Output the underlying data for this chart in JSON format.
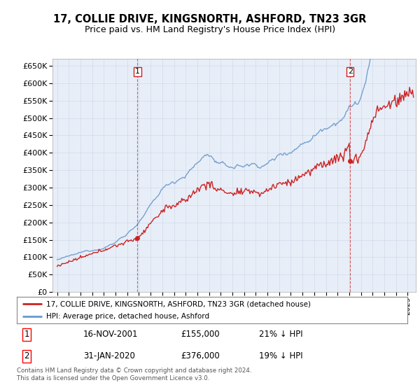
{
  "title": "17, COLLIE DRIVE, KINGSNORTH, ASHFORD, TN23 3GR",
  "subtitle": "Price paid vs. HM Land Registry's House Price Index (HPI)",
  "ylim": [
    0,
    670000
  ],
  "yticks": [
    0,
    50000,
    100000,
    150000,
    200000,
    250000,
    300000,
    350000,
    400000,
    450000,
    500000,
    550000,
    600000,
    650000
  ],
  "sale1_date_num": 2001.88,
  "sale1_price": 155000,
  "sale2_date_num": 2020.08,
  "sale2_price": 376000,
  "hpi_color": "#6699cc",
  "price_color": "#cc2222",
  "grid_color": "#bbccdd",
  "bg_color": "#e8eef8",
  "legend_label1": "17, COLLIE DRIVE, KINGSNORTH, ASHFORD, TN23 3GR (detached house)",
  "legend_label2": "HPI: Average price, detached house, Ashford",
  "table_row1": [
    "1",
    "16-NOV-2001",
    "£155,000",
    "21% ↓ HPI"
  ],
  "table_row2": [
    "2",
    "31-JAN-2020",
    "£376,000",
    "19% ↓ HPI"
  ],
  "footnote": "Contains HM Land Registry data © Crown copyright and database right 2024.\nThis data is licensed under the Open Government Licence v3.0."
}
